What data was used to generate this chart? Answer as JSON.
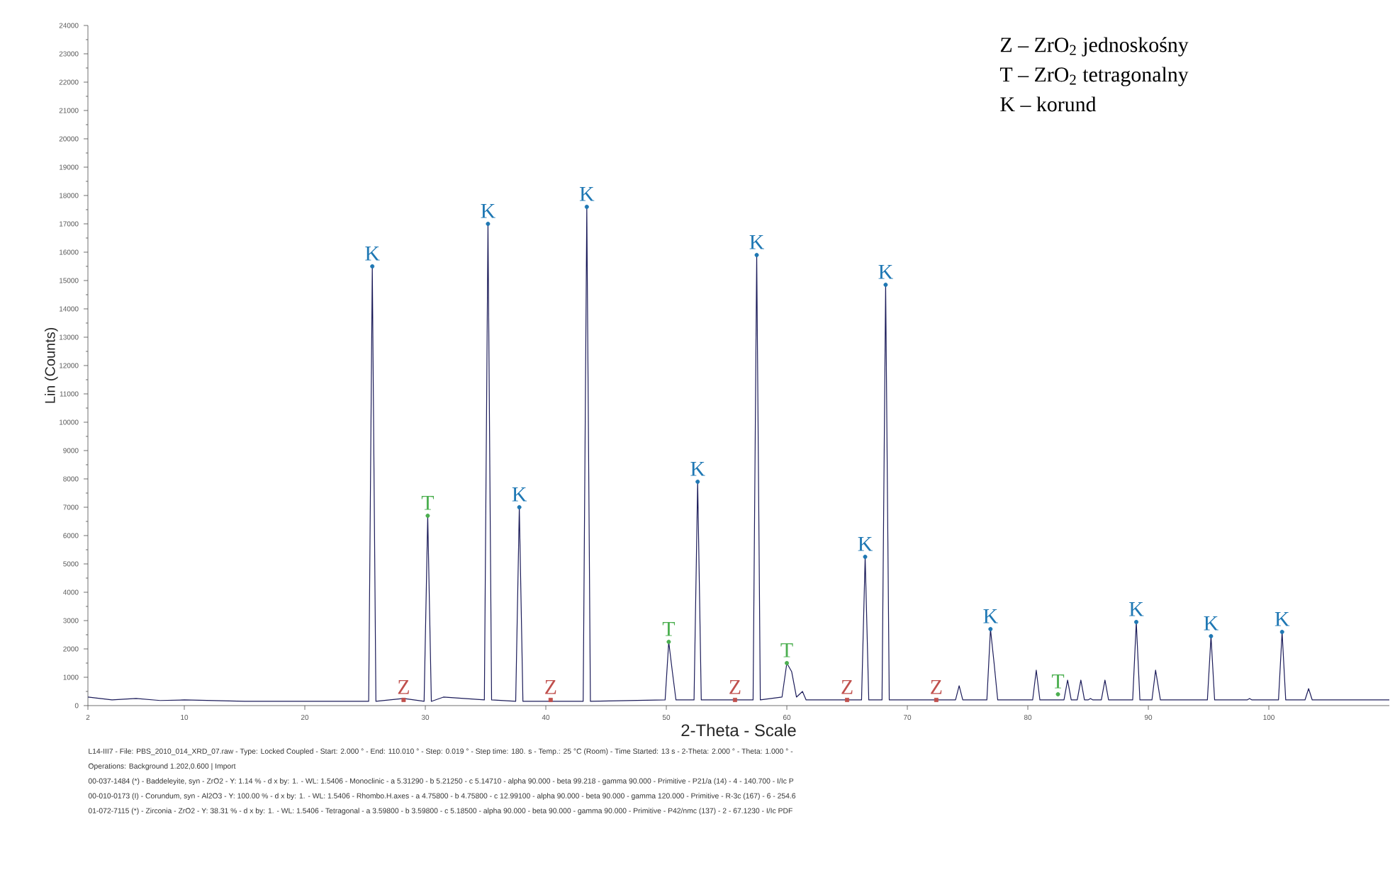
{
  "chart_data": {
    "type": "line",
    "xlabel": "2-Theta - Scale",
    "ylabel": "Lin (Counts)",
    "xlim": [
      2,
      110
    ],
    "xticks": [
      2,
      10,
      20,
      30,
      40,
      50,
      60,
      70,
      80,
      90,
      100
    ],
    "ylim": [
      0,
      24000
    ],
    "yticks": [
      0,
      1000,
      2000,
      3000,
      4000,
      5000,
      6000,
      7000,
      8000,
      9000,
      10000,
      11000,
      12000,
      13000,
      14000,
      15000,
      16000,
      17000,
      18000,
      19000,
      20000,
      21000,
      22000,
      23000,
      24000
    ],
    "grid": false,
    "legend": false,
    "series": [
      {
        "type": "line",
        "color": "#1c1c5a",
        "marker": "none",
        "x": [
          2,
          4,
          6,
          8,
          10,
          15,
          20,
          25.3,
          25.6,
          25.9,
          28.2,
          29.9,
          30.2,
          30.5,
          31.5,
          34.9,
          35.2,
          35.5,
          37.5,
          37.8,
          38.1,
          43.1,
          43.4,
          43.7,
          49.9,
          50.2,
          50.5,
          50.8,
          52.3,
          52.6,
          52.9,
          57.2,
          57.5,
          57.8,
          59.6,
          60.0,
          60.4,
          60.8,
          61.3,
          61.6,
          66.2,
          66.5,
          66.8,
          67.9,
          68.2,
          68.5,
          74.0,
          74.3,
          74.6,
          76.6,
          76.9,
          77.2,
          77.5,
          80.4,
          80.7,
          81.0,
          83.0,
          83.3,
          83.6,
          84.1,
          84.4,
          84.7,
          85.0,
          85.2,
          85.4,
          86.1,
          86.4,
          86.7,
          88.7,
          89.0,
          89.3,
          90.3,
          90.6,
          91.0,
          94.9,
          95.2,
          95.5,
          98.2,
          98.4,
          98.6,
          100.8,
          101.1,
          101.4,
          103.0,
          103.3,
          103.6,
          110
        ],
        "values": [
          300,
          200,
          250,
          180,
          200,
          150,
          150,
          150,
          15500,
          150,
          250,
          150,
          6700,
          150,
          300,
          200,
          17000,
          200,
          150,
          7000,
          150,
          150,
          17600,
          150,
          200,
          2250,
          1200,
          200,
          200,
          7900,
          200,
          200,
          15900,
          200,
          300,
          1500,
          1200,
          300,
          500,
          200,
          200,
          5250,
          200,
          200,
          14850,
          200,
          200,
          700,
          200,
          200,
          2700,
          1500,
          200,
          200,
          1250,
          200,
          200,
          900,
          200,
          200,
          900,
          200,
          200,
          250,
          200,
          200,
          900,
          200,
          200,
          2950,
          200,
          200,
          1250,
          200,
          200,
          2450,
          200,
          200,
          250,
          200,
          200,
          2600,
          200,
          200,
          600,
          200,
          200
        ]
      },
      {
        "type": "scatter",
        "name": "K",
        "color": "#1f78b4",
        "marker": "circle",
        "x": [
          25.6,
          35.2,
          37.8,
          43.4,
          52.6,
          57.5,
          66.5,
          68.2,
          76.9,
          89.0,
          95.2,
          101.1
        ],
        "values": [
          15500,
          17000,
          7000,
          17600,
          7900,
          15900,
          5250,
          14850,
          2700,
          2950,
          2450,
          2600
        ]
      },
      {
        "type": "scatter",
        "name": "T",
        "color": "#4caf50",
        "marker": "circle",
        "x": [
          30.2,
          50.2,
          60.0,
          82.5
        ],
        "values": [
          6700,
          2250,
          1500,
          400
        ]
      },
      {
        "type": "scatter",
        "name": "Z",
        "color": "#c0504d",
        "marker": "square",
        "x": [
          28.2,
          40.4,
          55.7,
          65.0,
          72.4
        ],
        "values": [
          200,
          200,
          200,
          200,
          200
        ]
      }
    ],
    "annotations": [
      "Z – ZrO$_{2}$ jednoskośny",
      "T – ZrO$_{2}$ tetragonalny",
      "K – korund",
      "L14-III7 - File: PBS_2010_014_XRD_07.raw - Type: Locked Coupled - Start: 2.000 ° - End: 110.010 ° - Step: 0.019 ° - Step time: 180. s - Temp.: 25 °C (Room) - Time Started: 13 s - 2-Theta: 2.000 ° - Theta: 1.000 ° -",
      "Operations: Background 1.202,0.600 | Import",
      "00-037-1484 (*) - Baddeleyite, syn - ZrO2 - Y: 1.14 % - d x by: 1. - WL: 1.5406 - Monoclinic - a 5.31290 - b 5.21250 - c 5.14710 - alpha 90.000 - beta 99.218 - gamma 90.000 - Primitive - P21/a (14) - 4 - 140.700 - I/Ic P",
      "00-010-0173 (I) - Corundum, syn - Al2O3 - Y: 100.00 % - d x by: 1. - WL: 1.5406 - Rhombo.H.axes - a 4.75800 - b 4.75800 - c 12.99100 - alpha 90.000 - beta 90.000 - gamma 120.000 - Primitive - R-3c (167) - 6 - 254.6",
      "01-072-7115 (*) - Zirconia - ZrO2 - Y: 38.31 % - d x by: 1. - WL: 1.5406 - Tetragonal - a 3.59800 - b 3.59800 - c 5.18500 - alpha 90.000 - beta 90.000 - gamma 90.000 - Primitive - P42/nmc (137) - 2 - 67.1230 - I/Ic PDF"
    ]
  }
}
